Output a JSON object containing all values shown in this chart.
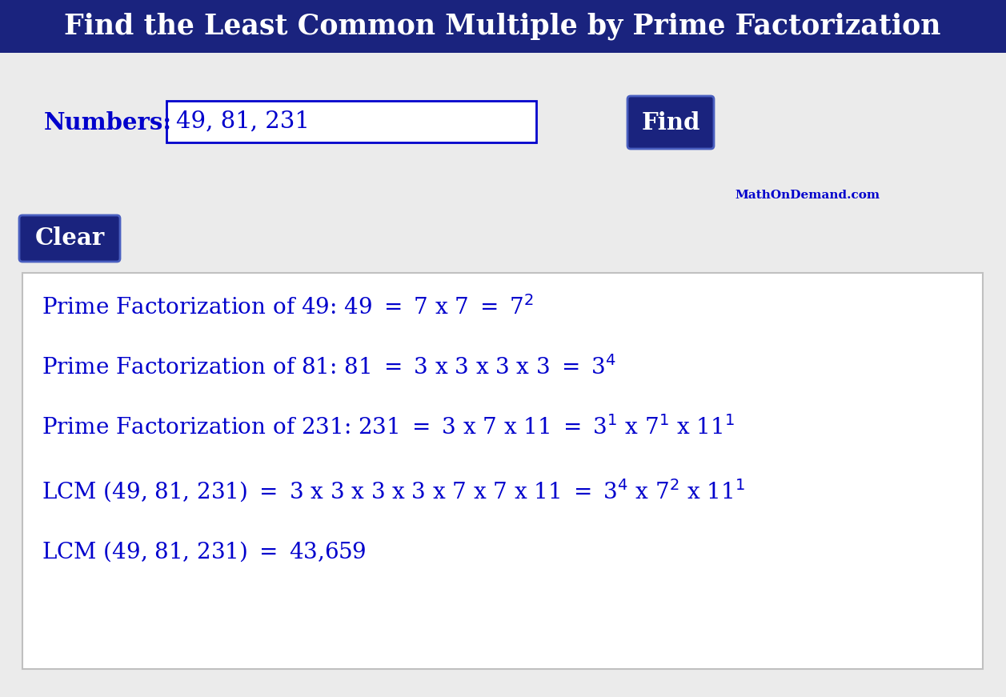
{
  "title": "Find the Least Common Multiple by Prime Factorization",
  "title_bg_color": "#1a237e",
  "title_text_color": "#ffffff",
  "bg_color": "#ebebeb",
  "blue_color": "#0000cc",
  "dark_blue_btn": "#1a237e",
  "numbers_label": "Numbers:",
  "numbers_value": "49, 81, 231",
  "find_btn_text": "Find",
  "clear_btn_text": "Clear",
  "watermark": "MathOnDemand.com",
  "line1": "Prime Factorization of 49: 49 $=$ 7 x 7 $=$ 7$^{2}$",
  "line2": "Prime Factorization of 81: 81 $=$ 3 x 3 x 3 x 3 $=$ 3$^{4}$",
  "line3": "Prime Factorization of 231: 231 $=$ 3 x 7 x 11 $=$ 3$^{1}$ x 7$^{1}$ x 11$^{1}$",
  "line4": "LCM (49, 81, 231) $=$ 3 x 3 x 3 x 3 x 7 x 7 x 11 $=$ 3$^{4}$ x 7$^{2}$ x 11$^{1}$",
  "line5": "LCM (49, 81, 231) $=$ 43,659"
}
